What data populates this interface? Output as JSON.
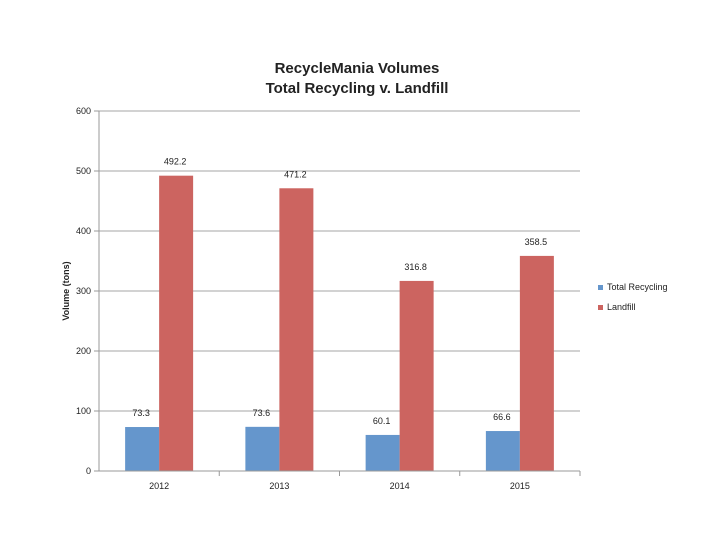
{
  "chart_data": {
    "type": "bar",
    "title": "RecycleMania Volumes",
    "subtitle": "Total Recycling v. Landfill",
    "xlabel": "",
    "ylabel": "Volume (tons)",
    "ylim": [
      0,
      600
    ],
    "yticks": [
      "0",
      "100",
      "200",
      "300",
      "400",
      "500",
      "600"
    ],
    "categories": [
      "2012",
      "2013",
      "2014",
      "2015"
    ],
    "series": [
      {
        "name": "Total Recycling",
        "color": "#6596CC",
        "values": [
          73.3,
          73.6,
          60.1,
          66.6
        ],
        "labels": [
          "73.3",
          "73.6",
          "60.1",
          "66.6"
        ]
      },
      {
        "name": "Landfill",
        "color": "#CC6460",
        "values": [
          492.2,
          471.2,
          316.8,
          358.5
        ],
        "labels": [
          "492.2",
          "471.2",
          "316.8",
          "358.5"
        ]
      }
    ],
    "grid": true,
    "legend": "right"
  }
}
